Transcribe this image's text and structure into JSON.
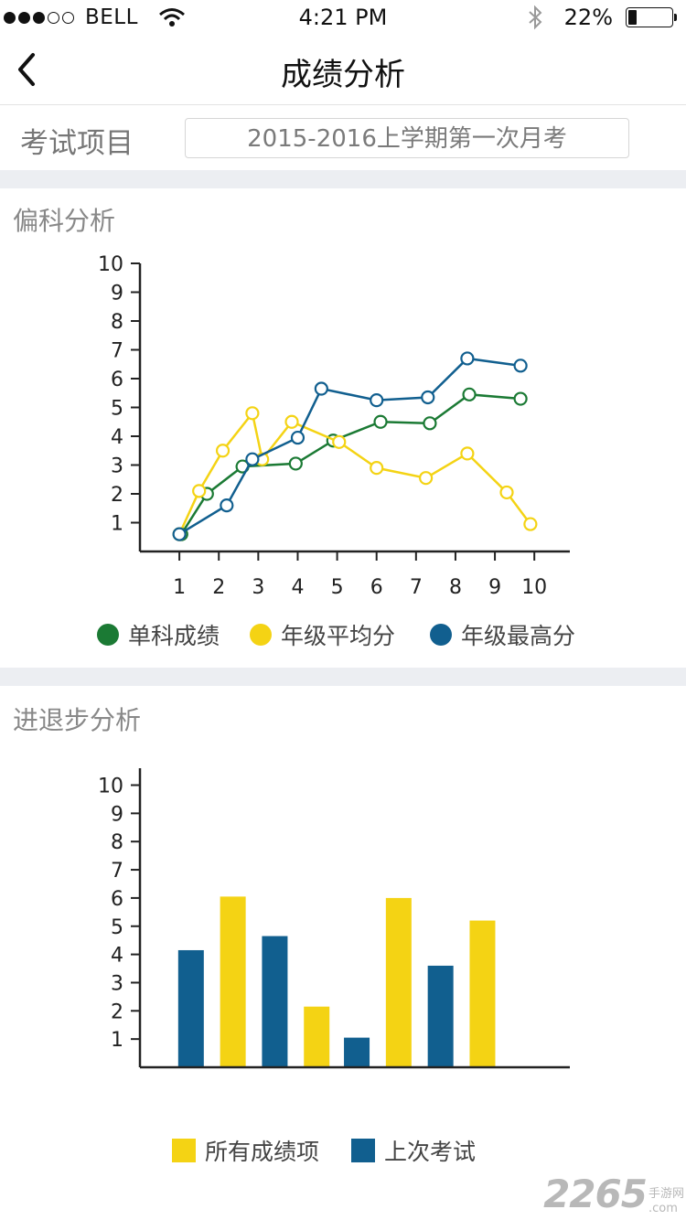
{
  "status_bar": {
    "carrier": "BELL",
    "time": "4:21 PM",
    "battery": "22%",
    "battery_level": 0.22,
    "signal_bars_filled": 3,
    "signal_bars_total": 5
  },
  "nav": {
    "title": "成绩分析",
    "back_icon": "chevron-left-icon"
  },
  "exam": {
    "label": "考试项目",
    "selected": "2015-2016上学期第一次月考"
  },
  "colors": {
    "green": "#1b7a34",
    "yellow": "#f4d314",
    "blue": "#115f8f",
    "separator": "#eceef2"
  },
  "section1": {
    "title": "偏科分析"
  },
  "section2": {
    "title": "进退步分析"
  },
  "chart_data": [
    {
      "type": "line",
      "x_ticks": [
        "1",
        "2",
        "3",
        "4",
        "5",
        "6",
        "7",
        "8",
        "9",
        "10"
      ],
      "y_ticks": [
        "1",
        "2",
        "3",
        "4",
        "5",
        "6",
        "7",
        "8",
        "9",
        "10"
      ],
      "xlim": [
        0,
        10.9
      ],
      "ylim": [
        0,
        10
      ],
      "series": [
        {
          "name": "单科成绩",
          "color": "#1b7a34",
          "x": [
            1.05,
            1.7,
            2.6,
            3.95,
            4.9,
            6.1,
            7.35,
            8.35,
            9.65
          ],
          "y": [
            0.6,
            2.0,
            2.95,
            3.05,
            3.85,
            4.5,
            4.45,
            5.45,
            5.3
          ]
        },
        {
          "name": "年级平均分",
          "color": "#f4d314",
          "x": [
            1.0,
            1.5,
            2.1,
            2.85,
            3.1,
            3.85,
            5.05,
            6.0,
            7.25,
            8.3,
            9.3,
            9.9
          ],
          "y": [
            0.6,
            2.1,
            3.5,
            4.8,
            3.2,
            4.5,
            3.8,
            2.9,
            2.55,
            3.4,
            2.05,
            0.95
          ]
        },
        {
          "name": "年级最高分",
          "color": "#115f8f",
          "x": [
            1.0,
            2.2,
            2.85,
            4.0,
            4.6,
            6.0,
            7.3,
            8.3,
            9.65
          ],
          "y": [
            0.6,
            1.6,
            3.2,
            3.95,
            5.65,
            5.25,
            5.35,
            6.7,
            6.45
          ]
        }
      ],
      "legend_position": "bottom"
    },
    {
      "type": "bar",
      "y_ticks": [
        "1",
        "2",
        "3",
        "4",
        "5",
        "6",
        "7",
        "8",
        "9",
        "10"
      ],
      "xlim": [
        0,
        11.8
      ],
      "ylim": [
        0,
        10
      ],
      "bars": [
        {
          "series": "上次考试",
          "x": 1.05,
          "value": 4.15,
          "color": "#115f8f"
        },
        {
          "series": "所有成绩项",
          "x": 2.2,
          "value": 6.05,
          "color": "#f4d314"
        },
        {
          "series": "上次考试",
          "x": 3.35,
          "value": 4.65,
          "color": "#115f8f"
        },
        {
          "series": "所有成绩项",
          "x": 4.5,
          "value": 2.15,
          "color": "#f4d314"
        },
        {
          "series": "上次考试",
          "x": 5.6,
          "value": 1.05,
          "color": "#115f8f"
        },
        {
          "series": "所有成绩项",
          "x": 6.75,
          "value": 6.0,
          "color": "#f4d314"
        },
        {
          "series": "上次考试",
          "x": 7.9,
          "value": 3.6,
          "color": "#115f8f"
        },
        {
          "series": "所有成绩项",
          "x": 9.05,
          "value": 5.2,
          "color": "#f4d314"
        }
      ],
      "legend": [
        {
          "name": "所有成绩项",
          "color": "#f4d314"
        },
        {
          "name": "上次考试",
          "color": "#115f8f"
        }
      ],
      "legend_position": "bottom"
    }
  ],
  "watermark": {
    "number": "2265",
    "cn": "手游网",
    "domain": ".com"
  }
}
